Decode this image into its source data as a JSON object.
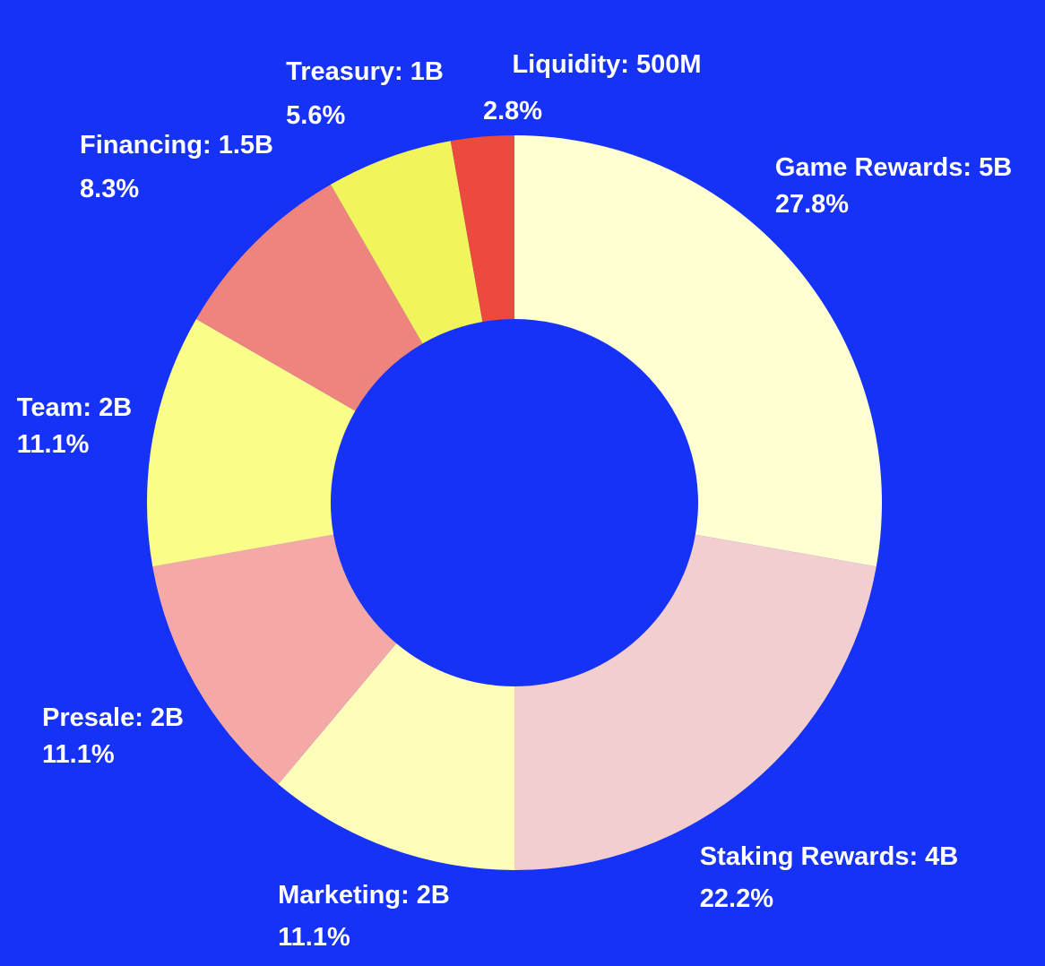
{
  "colors": {
    "background": "#1632f6",
    "label": "#ffffff"
  },
  "chart_data": {
    "type": "pie",
    "variant": "donut",
    "unit": "tokens",
    "slices": [
      {
        "key": "game_rewards",
        "name": "Game Rewards: 5B",
        "value": 5000000000,
        "percent": "27.8%",
        "color": "#ffffd2"
      },
      {
        "key": "staking_rewards",
        "name": "Staking Rewards: 4B",
        "value": 4000000000,
        "percent": "22.2%",
        "color": "#f2cfce"
      },
      {
        "key": "marketing",
        "name": "Marketing: 2B",
        "value": 2000000000,
        "percent": "11.1%",
        "color": "#fdfdb9"
      },
      {
        "key": "presale",
        "name": "Presale: 2B",
        "value": 2000000000,
        "percent": "11.1%",
        "color": "#f4a9a7"
      },
      {
        "key": "team",
        "name": "Team: 2B",
        "value": 2000000000,
        "percent": "11.1%",
        "color": "#fbfd89"
      },
      {
        "key": "financing",
        "name": "Financing: 1.5B",
        "value": 1500000000,
        "percent": "8.3%",
        "color": "#ef847e"
      },
      {
        "key": "treasury",
        "name": "Treasury: 1B",
        "value": 1000000000,
        "percent": "5.6%",
        "color": "#f1f45b"
      },
      {
        "key": "liquidity",
        "name": "Liquidity: 500M",
        "value": 500000000,
        "percent": "2.8%",
        "color": "#ec4a3e"
      }
    ]
  }
}
